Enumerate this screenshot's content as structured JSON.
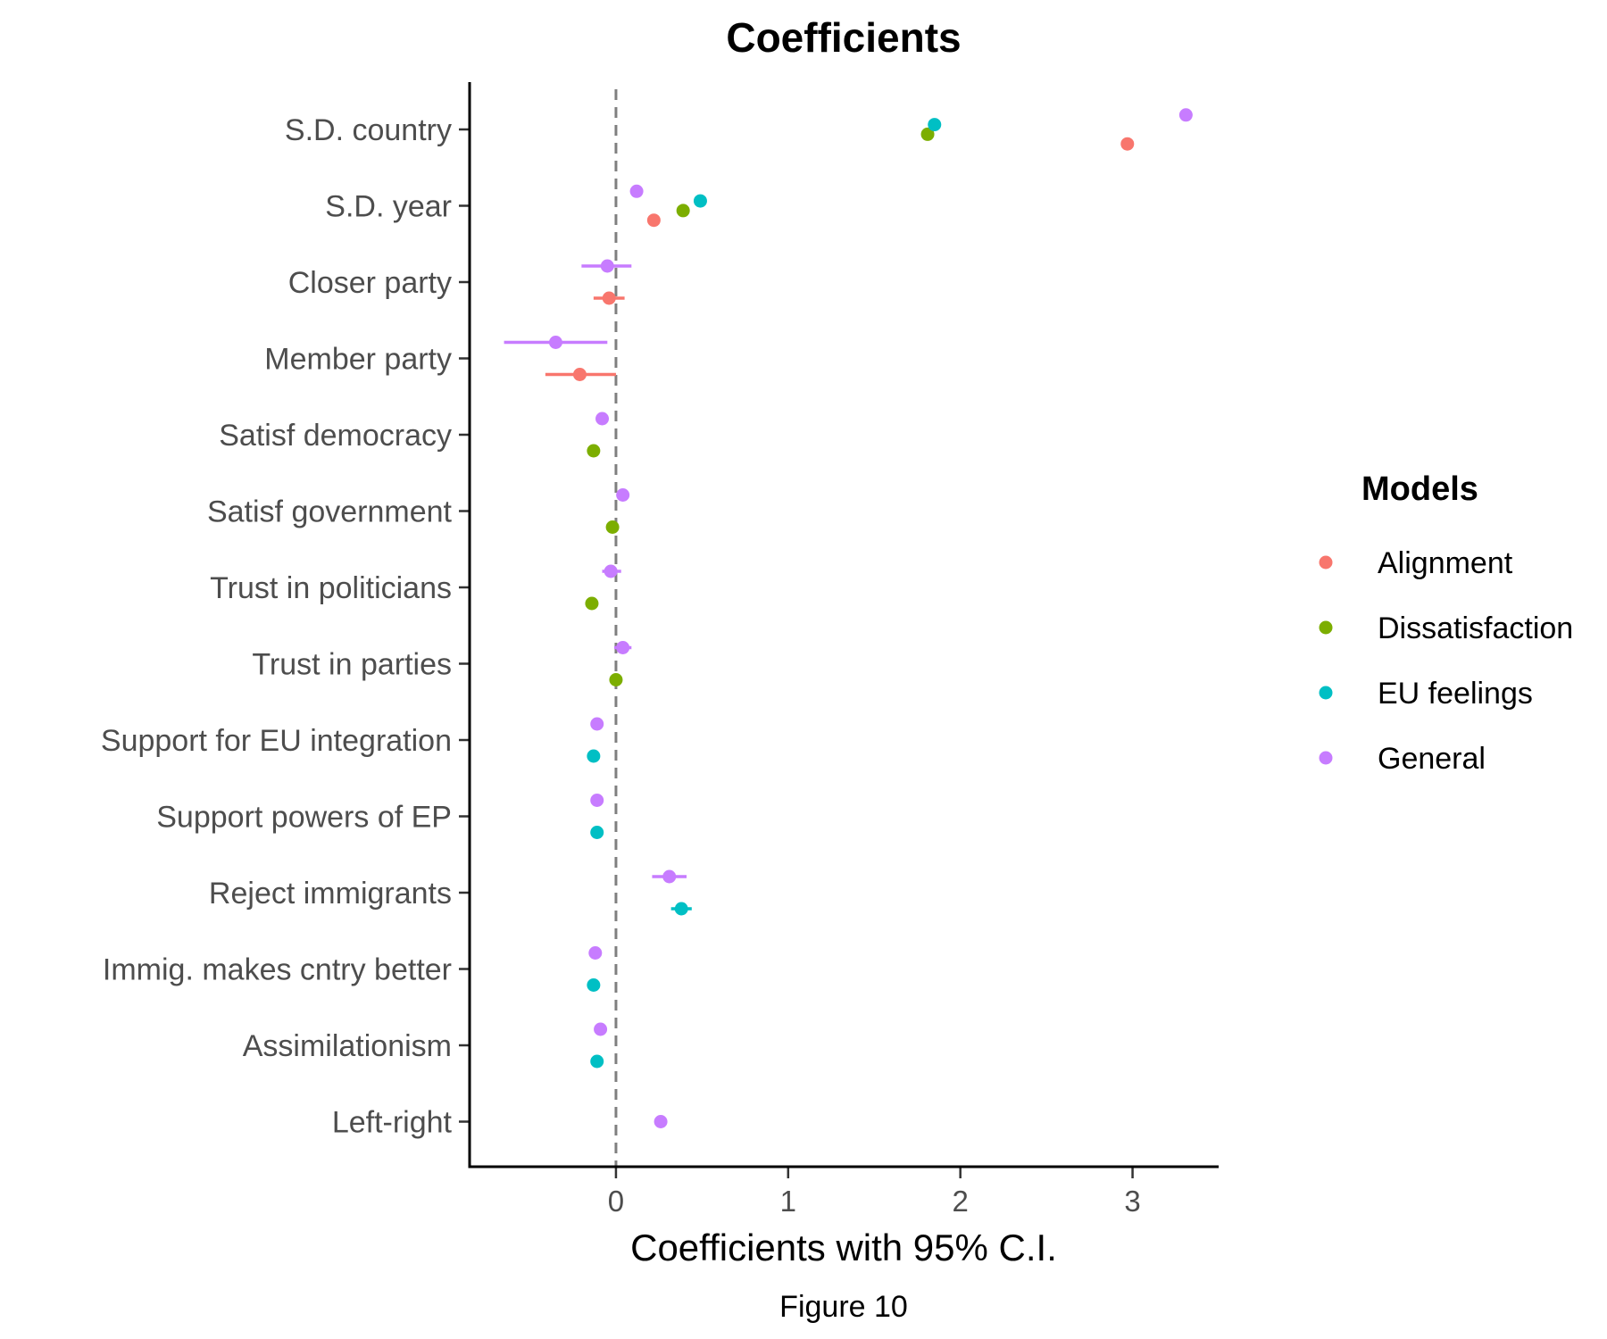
{
  "chart_data": {
    "type": "scatter",
    "title": "Coefficients",
    "xlabel": "Coefficients with 95% C.I.",
    "caption": "Figure 10",
    "xlim": [
      -0.85,
      3.5
    ],
    "xticks": [
      "0",
      "1",
      "2",
      "3"
    ],
    "reference_line": 0,
    "grid": false,
    "legend_title": "Models",
    "legend_position": "right",
    "categories": [
      "S.D. country",
      "S.D. year",
      "Closer party",
      "Member party",
      "Satisf democracy",
      "Satisf government",
      "Trust in politicians",
      "Trust in parties",
      "Support for EU integration",
      "Support powers of EP",
      "Reject immigrants",
      "Immig. makes cntry better",
      "Assimilationism",
      "Left-right"
    ],
    "series": [
      {
        "name": "Alignment",
        "color": "#F8766D",
        "points": [
          {
            "category": "S.D. country",
            "estimate": 2.97,
            "low": 2.97,
            "high": 2.97
          },
          {
            "category": "S.D. year",
            "estimate": 0.22,
            "low": 0.22,
            "high": 0.22
          },
          {
            "category": "Closer party",
            "estimate": -0.04,
            "low": -0.13,
            "high": 0.05
          },
          {
            "category": "Member party",
            "estimate": -0.21,
            "low": -0.41,
            "high": 0.0
          }
        ]
      },
      {
        "name": "Dissatisfaction",
        "color": "#7CAE00",
        "points": [
          {
            "category": "S.D. country",
            "estimate": 1.81,
            "low": 1.81,
            "high": 1.81
          },
          {
            "category": "S.D. year",
            "estimate": 0.39,
            "low": 0.39,
            "high": 0.39
          },
          {
            "category": "Satisf democracy",
            "estimate": -0.13,
            "low": -0.15,
            "high": -0.11
          },
          {
            "category": "Satisf government",
            "estimate": -0.02,
            "low": -0.04,
            "high": 0.0
          },
          {
            "category": "Trust in politicians",
            "estimate": -0.14,
            "low": -0.16,
            "high": -0.12
          },
          {
            "category": "Trust in parties",
            "estimate": 0.0,
            "low": -0.02,
            "high": 0.02
          }
        ]
      },
      {
        "name": "EU feelings",
        "color": "#00BFC4",
        "points": [
          {
            "category": "S.D. country",
            "estimate": 1.85,
            "low": 1.85,
            "high": 1.85
          },
          {
            "category": "S.D. year",
            "estimate": 0.49,
            "low": 0.49,
            "high": 0.49
          },
          {
            "category": "Support for EU integration",
            "estimate": -0.13,
            "low": -0.15,
            "high": -0.11
          },
          {
            "category": "Support powers of EP",
            "estimate": -0.11,
            "low": -0.13,
            "high": -0.09
          },
          {
            "category": "Reject immigrants",
            "estimate": 0.38,
            "low": 0.32,
            "high": 0.44
          },
          {
            "category": "Immig. makes cntry better",
            "estimate": -0.13,
            "low": -0.15,
            "high": -0.11
          },
          {
            "category": "Assimilationism",
            "estimate": -0.11,
            "low": -0.13,
            "high": -0.09
          }
        ]
      },
      {
        "name": "General",
        "color": "#C77CFF",
        "points": [
          {
            "category": "S.D. country",
            "estimate": 3.31,
            "low": 3.31,
            "high": 3.31
          },
          {
            "category": "S.D. year",
            "estimate": 0.12,
            "low": 0.12,
            "high": 0.12
          },
          {
            "category": "Closer party",
            "estimate": -0.05,
            "low": -0.2,
            "high": 0.09
          },
          {
            "category": "Member party",
            "estimate": -0.35,
            "low": -0.65,
            "high": -0.05
          },
          {
            "category": "Satisf democracy",
            "estimate": -0.08,
            "low": -0.1,
            "high": -0.06
          },
          {
            "category": "Satisf government",
            "estimate": 0.04,
            "low": 0.02,
            "high": 0.06
          },
          {
            "category": "Trust in politicians",
            "estimate": -0.03,
            "low": -0.08,
            "high": 0.03
          },
          {
            "category": "Trust in parties",
            "estimate": 0.04,
            "low": -0.01,
            "high": 0.09
          },
          {
            "category": "Support for EU integration",
            "estimate": -0.11,
            "low": -0.13,
            "high": -0.09
          },
          {
            "category": "Support powers of EP",
            "estimate": -0.11,
            "low": -0.13,
            "high": -0.09
          },
          {
            "category": "Reject immigrants",
            "estimate": 0.31,
            "low": 0.21,
            "high": 0.41
          },
          {
            "category": "Immig. makes cntry better",
            "estimate": -0.12,
            "low": -0.14,
            "high": -0.1
          },
          {
            "category": "Assimilationism",
            "estimate": -0.09,
            "low": -0.11,
            "high": -0.07
          },
          {
            "category": "Left-right",
            "estimate": 0.26,
            "low": 0.24,
            "high": 0.28
          }
        ]
      }
    ]
  }
}
